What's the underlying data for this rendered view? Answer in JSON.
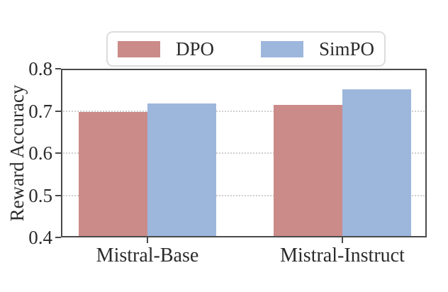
{
  "chart_data": {
    "type": "bar",
    "title": "",
    "categories": [
      "Mistral-Base",
      "Mistral-Instruct"
    ],
    "series": [
      {
        "name": "DPO",
        "color": "#CB8B89",
        "values": [
          0.697,
          0.715
        ]
      },
      {
        "name": "SimPO",
        "color": "#9DB6DC",
        "values": [
          0.718,
          0.751
        ]
      }
    ],
    "xlabel": "",
    "ylabel": "Reward Accuracy",
    "ylim": [
      0.4,
      0.8
    ],
    "yticks": [
      0.4,
      0.5,
      0.6,
      0.7,
      0.8
    ],
    "ytick_decimals": 1,
    "grid": "horizontal-dotted",
    "legend_position": "top-center"
  },
  "style_colors": {
    "spine": "#4a4a4a",
    "gridline": "#cfcfcf",
    "text": "#2b2b2b",
    "legend_border": "#dcdcdc",
    "background": "#ffffff"
  }
}
